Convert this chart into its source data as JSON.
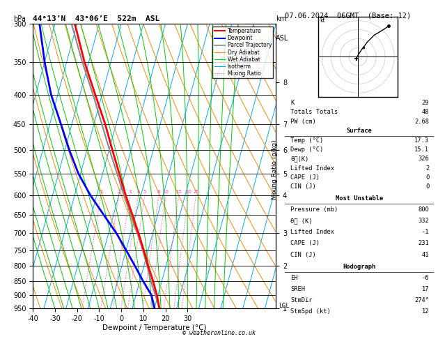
{
  "title_left": "44°13’N  43°06’E  522m  ASL",
  "title_right": "07.06.2024  06GMT  (Base: 12)",
  "xlabel": "Dewpoint / Temperature (°C)",
  "footer": "© weatheronline.co.uk",
  "pressure_levels": [
    300,
    350,
    400,
    450,
    500,
    550,
    600,
    650,
    700,
    750,
    800,
    850,
    900,
    950
  ],
  "pressure_min": 300,
  "pressure_max": 950,
  "temp_min": -40,
  "temp_max": 35,
  "skew_factor": 35.0,
  "temp_profile": {
    "pressure": [
      950,
      900,
      850,
      800,
      750,
      700,
      650,
      600,
      550,
      500,
      450,
      400,
      350,
      300
    ],
    "temp": [
      17.3,
      14.5,
      11.0,
      7.0,
      3.0,
      -1.5,
      -6.5,
      -12.0,
      -17.5,
      -23.5,
      -30.0,
      -38.0,
      -47.0,
      -56.0
    ]
  },
  "dewp_profile": {
    "pressure": [
      950,
      900,
      850,
      800,
      750,
      700,
      650,
      600,
      550,
      500,
      450,
      400,
      350,
      300
    ],
    "temp": [
      15.1,
      12.0,
      6.5,
      1.0,
      -5.0,
      -11.5,
      -19.5,
      -28.0,
      -36.0,
      -43.0,
      -50.0,
      -58.0,
      -65.0,
      -72.0
    ]
  },
  "parcel_profile": {
    "pressure": [
      950,
      900,
      850,
      800,
      750,
      700,
      650,
      600,
      550,
      500,
      450,
      400,
      350,
      300
    ],
    "temp": [
      17.3,
      13.8,
      10.0,
      6.5,
      2.5,
      -2.0,
      -7.2,
      -12.8,
      -18.5,
      -24.8,
      -31.5,
      -39.0,
      -48.0,
      -57.5
    ]
  },
  "isotherm_color": "#00aaff",
  "dry_adiabat_color": "#ff8800",
  "wet_adiabat_color": "#00cc00",
  "mixing_ratio_color": "#ff44aa",
  "mixing_ratios": [
    1,
    2,
    3,
    4,
    5,
    8,
    10,
    15,
    20,
    25
  ],
  "temp_color": "#ff0000",
  "dewp_color": "#0000ff",
  "parcel_color": "#888888",
  "km_ticks": {
    "1": 950,
    "2": 800,
    "3": 700,
    "4": 600,
    "5": 550,
    "6": 500,
    "7": 450,
    "8": 380
  },
  "lcl_pressure": 940,
  "surface_data": {
    "K": 29,
    "Totals_Totals": 48,
    "PW_cm": 2.68,
    "Temp_C": 17.3,
    "Dewp_C": 15.1,
    "theta_e_K": 326,
    "Lifted_Index": 2,
    "CAPE_J": 0,
    "CIN_J": 0
  },
  "unstable_data": {
    "Pressure_mb": 800,
    "theta_e_K": 332,
    "Lifted_Index": -1,
    "CAPE_J": 231,
    "CIN_J": 41
  },
  "hodograph_data": {
    "EH": -6,
    "SREH": 17,
    "StmDir": 274,
    "StmSpd_kt": 12
  },
  "bg_color": "#ffffff"
}
